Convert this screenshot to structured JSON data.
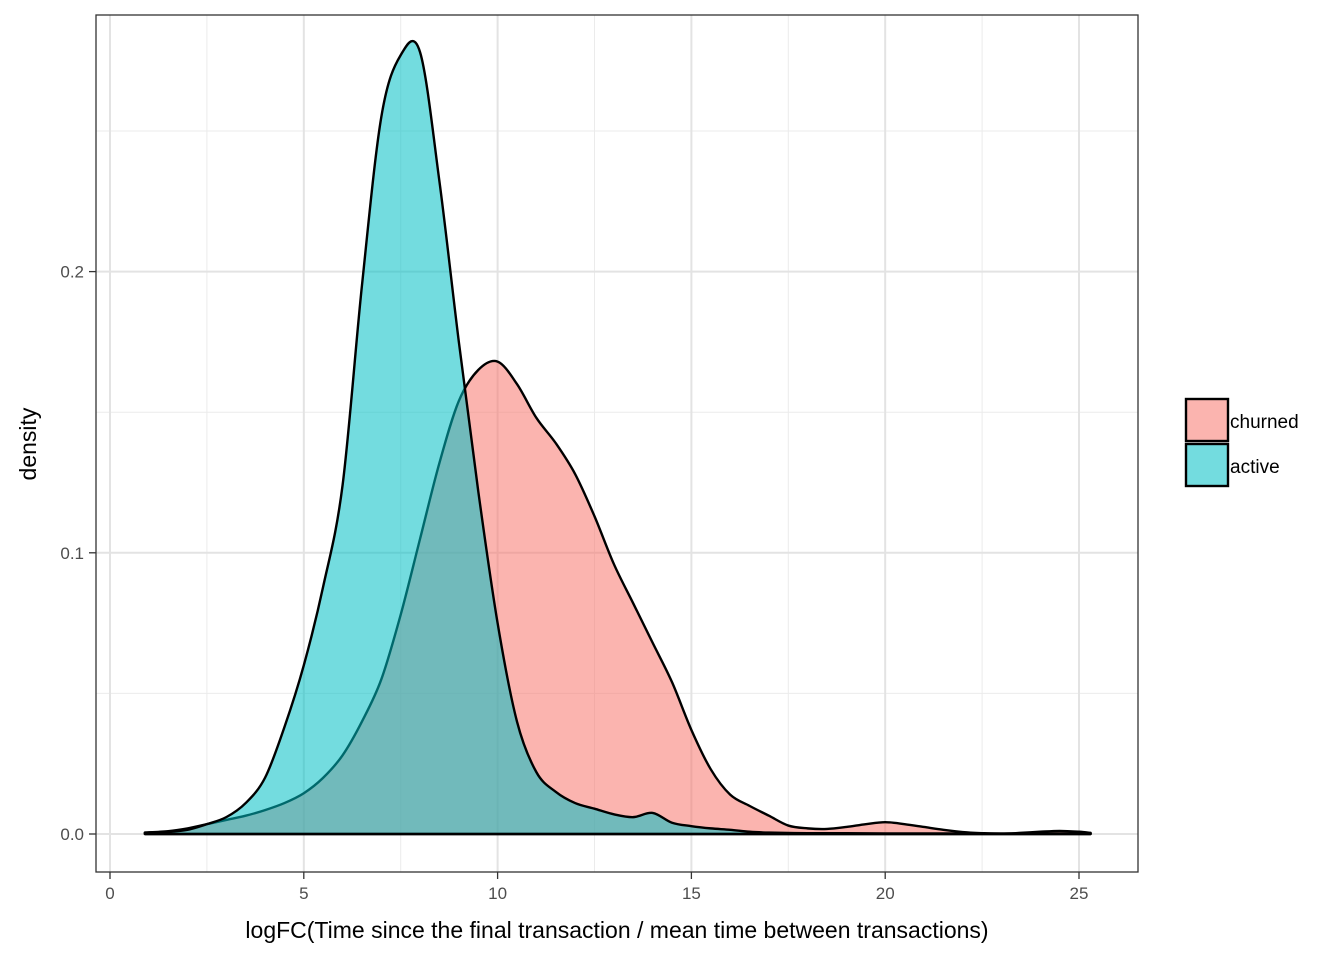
{
  "chart_data": {
    "type": "area",
    "title": "",
    "xlabel": "logFC(Time since the final transaction / mean time between transactions)",
    "ylabel": "density",
    "xlim": [
      0,
      26.5
    ],
    "ylim": [
      -0.013,
      0.291
    ],
    "x_ticks": [
      0,
      5,
      10,
      15,
      20,
      25
    ],
    "x_tick_labels": [
      "0",
      "5",
      "10",
      "15",
      "20",
      "25"
    ],
    "y_ticks": [
      0.0,
      0.1,
      0.2
    ],
    "y_tick_labels": [
      "0.0",
      "0.1",
      "0.2"
    ],
    "grid": true,
    "legend_position": "right",
    "series": [
      {
        "name": "churned",
        "color": "#F8766D",
        "x": [
          0.9,
          1.5,
          2,
          2.5,
          3,
          3.5,
          4,
          4.5,
          5,
          5.5,
          6,
          6.5,
          7,
          7.5,
          8,
          8.5,
          9,
          9.5,
          10,
          10.5,
          11,
          11.5,
          12,
          12.5,
          13,
          13.5,
          14,
          14.5,
          15,
          15.5,
          16,
          16.5,
          17,
          17.5,
          18,
          18.5,
          19,
          19.5,
          20,
          20.5,
          21,
          21.5,
          22,
          22.5,
          23,
          23.5,
          24,
          24.5,
          25,
          25.3
        ],
        "y": [
          0.0005,
          0.001,
          0.002,
          0.0035,
          0.005,
          0.0065,
          0.0085,
          0.011,
          0.0145,
          0.02,
          0.028,
          0.04,
          0.055,
          0.078,
          0.105,
          0.132,
          0.154,
          0.165,
          0.168,
          0.16,
          0.148,
          0.139,
          0.128,
          0.113,
          0.096,
          0.082,
          0.068,
          0.054,
          0.037,
          0.023,
          0.014,
          0.01,
          0.0065,
          0.003,
          0.002,
          0.0018,
          0.0025,
          0.0035,
          0.0042,
          0.0035,
          0.0025,
          0.0015,
          0.0007,
          0.0003,
          0.0001,
          0.0004,
          0.0008,
          0.0011,
          0.0008,
          0.0004
        ]
      },
      {
        "name": "active",
        "color": "#00BFC4",
        "x": [
          0.9,
          1.5,
          2,
          2.5,
          3,
          3.5,
          4,
          4.5,
          5,
          5.5,
          6,
          6.5,
          7,
          7.5,
          8,
          8.5,
          9,
          9.5,
          10,
          10.5,
          11,
          11.5,
          12,
          12.5,
          13,
          13.5,
          14,
          14.5,
          15,
          15.5,
          16,
          16.5,
          17,
          18,
          19,
          20,
          21,
          22,
          23,
          24,
          25,
          25.3
        ],
        "y": [
          0.0005,
          0.0008,
          0.0015,
          0.0035,
          0.006,
          0.011,
          0.02,
          0.038,
          0.06,
          0.088,
          0.124,
          0.195,
          0.255,
          0.277,
          0.278,
          0.232,
          0.175,
          0.122,
          0.075,
          0.04,
          0.022,
          0.015,
          0.011,
          0.009,
          0.007,
          0.006,
          0.0075,
          0.004,
          0.0028,
          0.002,
          0.0015,
          0.0008,
          0.0005,
          0.0003,
          0.0003,
          0.0002,
          0.0002,
          0.0002,
          0.0002,
          0.0002,
          0.0002,
          0.0002
        ]
      }
    ]
  }
}
